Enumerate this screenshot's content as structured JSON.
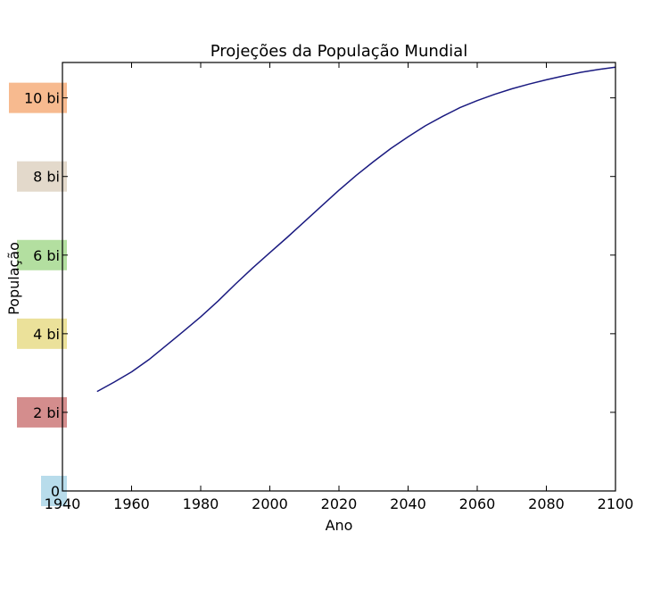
{
  "chart_data": {
    "type": "line",
    "title": "Projeções da População Mundial",
    "xlabel": "Ano",
    "ylabel": "População",
    "xlim": [
      1940,
      2100
    ],
    "ylim": [
      0,
      10.9
    ],
    "x_ticks": [
      {
        "value": 1940,
        "label": "1940"
      },
      {
        "value": 1960,
        "label": "1960"
      },
      {
        "value": 1980,
        "label": "1980"
      },
      {
        "value": 2000,
        "label": "2000"
      },
      {
        "value": 2020,
        "label": "2020"
      },
      {
        "value": 2040,
        "label": "2040"
      },
      {
        "value": 2060,
        "label": "2060"
      },
      {
        "value": 2080,
        "label": "2080"
      },
      {
        "value": 2100,
        "label": "2100"
      }
    ],
    "y_ticks": [
      {
        "value": 0,
        "label": "0",
        "color": "#b8dceb"
      },
      {
        "value": 2,
        "label": "2 bi",
        "color": "#d48d8d"
      },
      {
        "value": 4,
        "label": "4 bi",
        "color": "#ebe19a"
      },
      {
        "value": 6,
        "label": "6 bi",
        "color": "#b3dfa0"
      },
      {
        "value": 8,
        "label": "8 bi",
        "color": "#e3d9cb"
      },
      {
        "value": 10,
        "label": "10 bi",
        "color": "#f7ba8f"
      }
    ],
    "grid": false,
    "series": [
      {
        "color": "#1a1a80",
        "x": [
          1950,
          1955,
          1960,
          1965,
          1970,
          1975,
          1980,
          1985,
          1990,
          1995,
          2000,
          2005,
          2010,
          2015,
          2020,
          2025,
          2030,
          2035,
          2040,
          2045,
          2050,
          2055,
          2060,
          2065,
          2070,
          2075,
          2080,
          2085,
          2090,
          2095,
          2100
        ],
        "values": [
          2.53,
          2.77,
          3.03,
          3.34,
          3.7,
          4.06,
          4.43,
          4.83,
          5.26,
          5.67,
          6.06,
          6.45,
          6.85,
          7.25,
          7.65,
          8.03,
          8.38,
          8.71,
          9.01,
          9.29,
          9.53,
          9.75,
          9.93,
          10.09,
          10.23,
          10.35,
          10.46,
          10.56,
          10.65,
          10.72,
          10.78
        ]
      }
    ]
  }
}
